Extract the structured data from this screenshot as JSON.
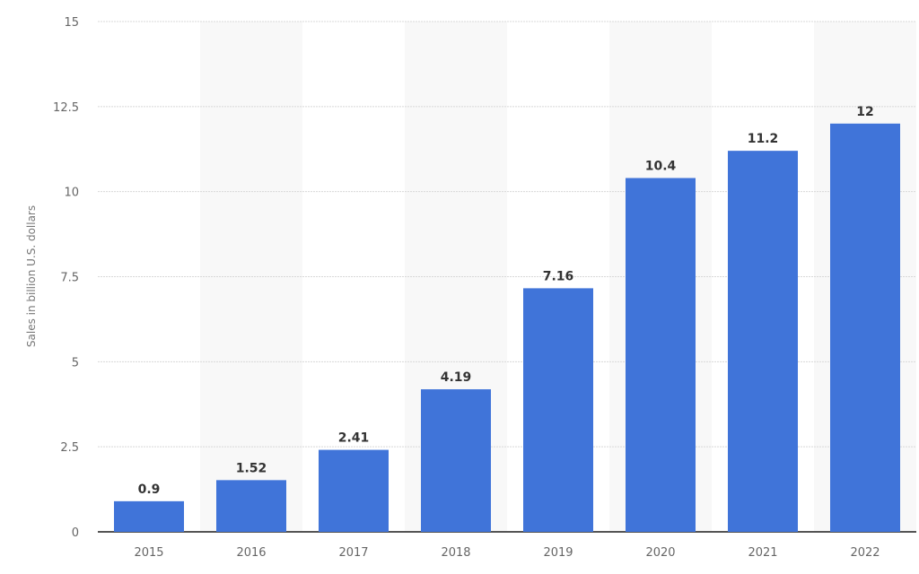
{
  "chart_data": {
    "type": "bar",
    "title": "",
    "xlabel": "",
    "ylabel": "Sales in billion U.S. dollars",
    "categories": [
      "2015",
      "2016",
      "2017",
      "2018",
      "2019",
      "2020",
      "2021",
      "2022"
    ],
    "values": [
      0.9,
      1.52,
      2.41,
      4.19,
      7.16,
      10.4,
      11.2,
      12
    ],
    "value_labels": [
      "0.9",
      "1.52",
      "2.41",
      "4.19",
      "7.16",
      "10.4",
      "11.2",
      "12"
    ],
    "ylim": [
      0,
      15
    ],
    "yticks": [
      0,
      2.5,
      5,
      7.5,
      10,
      12.5,
      15
    ],
    "ytick_labels": [
      "0",
      "2.5",
      "5",
      "7.5",
      "10",
      "12.5",
      "15"
    ],
    "grid": true,
    "alternating_bands": true,
    "colors": {
      "bar": "#4074d9",
      "band": "#f8f8f8",
      "grid": "#d8d8d8",
      "axis": "#555555",
      "tick_text": "#666666",
      "label_text": "#333333"
    }
  }
}
